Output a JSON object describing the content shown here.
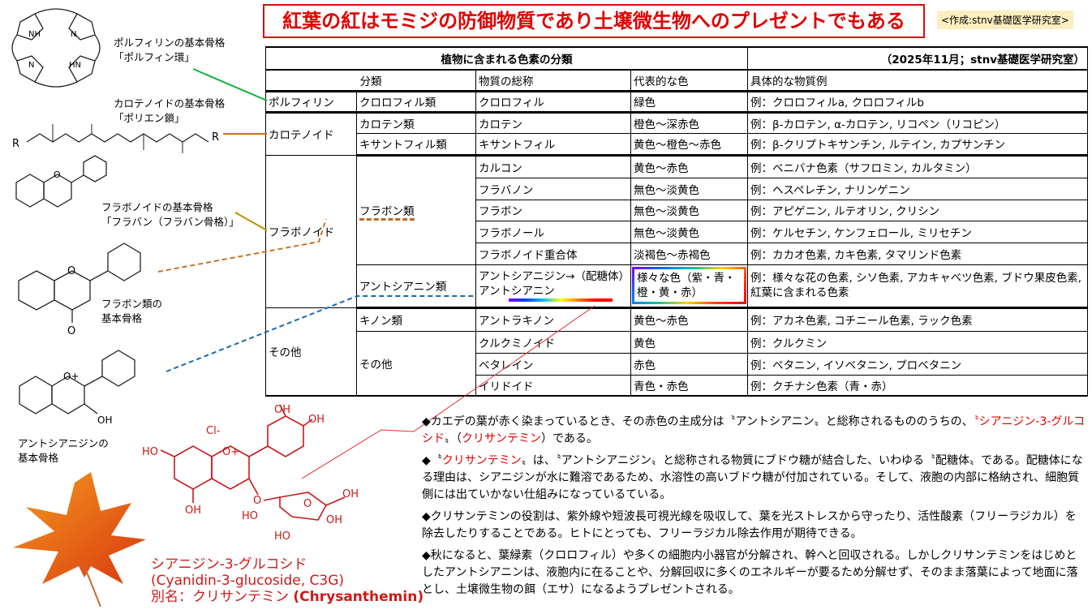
{
  "title": "紅葉の紅はモミジの防御物質であり土壌微生物へのプレゼントでもある",
  "credit": "<作成:stnv基礎医学研究室>",
  "table": {
    "title": "植物に含まれる色素の分類",
    "subtitle": "（2025年11月；stnv基礎医学研究室）",
    "headers": [
      "分類",
      "物質の総称",
      "代表的な色",
      "具体的な物質例"
    ],
    "groups": {
      "porphyrin": "ポルフィリン",
      "carotenoid": "カロテノイド",
      "flavonoid": "フラボノイド",
      "other": "その他",
      "flavone_class": "フラボン類",
      "anthocyanin_class": "アントシアニン類",
      "quinone_class": "キノン類",
      "other_class": "その他"
    },
    "rows": [
      {
        "sub": "クロロフィル類",
        "name": "クロロフィル",
        "color": "緑色",
        "example": "例：クロロフィルa, クロロフィルb"
      },
      {
        "sub": "カロテン類",
        "name": "カロテン",
        "color": "橙色～深赤色",
        "example": "例：β-カロテン, α-カロテン, リコペン（リコピン）"
      },
      {
        "sub": "キサントフィル類",
        "name": "キサントフィル",
        "color": "黄色～橙色～赤色",
        "example": "例：β-クリプトキサンチン, ルテイン, カプサンチン"
      },
      {
        "name": "カルコン",
        "color": "黄色～赤色",
        "example": "例：ベニバナ色素（サフロミン, カルタミン）"
      },
      {
        "name": "フラバノン",
        "color": "無色～淡黄色",
        "example": "例：ヘスペレチン, ナリンゲニン"
      },
      {
        "name": "フラボン",
        "color": "無色～淡黄色",
        "example": "例：アピゲニン, ルテオリン, クリシン"
      },
      {
        "name": "フラボノール",
        "color": "無色～淡黄色",
        "example": "例：ケルセチン, ケンフェロール, ミリセチン"
      },
      {
        "name": "フラボノイド重合体",
        "color": "淡褐色～赤褐色",
        "example": "例：カカオ色素, カキ色素, タマリンド色素"
      },
      {
        "name": "アントシアニジン→（配糖体）アントシアニン",
        "color": "様々な色（紫・青・橙・黄・赤）",
        "example": "例：様々な花の色素, シソ色素, アカキャベツ色素, ブドウ果皮色素, 紅葉に含まれる色素"
      },
      {
        "name": "アントラキノン",
        "color": "黄色～赤色",
        "example": "例：アカネ色素, コチニール色素, ラック色素"
      },
      {
        "name": "クルクミノイド",
        "color": "黄色",
        "example": "例：クルクミン"
      },
      {
        "name": "ベタレイン",
        "color": "赤色",
        "example": "例：ベタニン, イソベタニン, プロベタニン"
      },
      {
        "name": "イリドイド",
        "color": "青色・赤色",
        "example": "例：クチナシ色素（青・赤）"
      }
    ]
  },
  "structures": {
    "porphyrin": [
      "ポルフィリンの基本骨格",
      "「ポルフィン環」"
    ],
    "carotenoid": [
      "カロテノイドの基本骨格",
      "「ポリエン鎖」"
    ],
    "flavonoid": [
      "フラボノイドの基本骨格",
      "「フラバン（フラバン骨格）」"
    ],
    "flavone": [
      "フラボン類の",
      "基本骨格"
    ],
    "anthocyanidin": [
      "アントシアニジンの",
      "基本骨格"
    ],
    "atoms": {
      "nh": "NH",
      "hn": "HN",
      "n": "N",
      "r": "R",
      "o": "O",
      "o_plus": "O+",
      "oh": "OH",
      "ho": "HO",
      "cl": "Cl-"
    }
  },
  "compound": {
    "name": "シアニジン-3-グルコシド",
    "english": "(Cyanidin-3-glucoside, C3G)",
    "alias_label": "別名：クリサンテミン",
    "alias_english": "(Chrysanthemin)"
  },
  "notes": [
    [
      {
        "t": "◆カエデの葉が赤く染まっているとき、その赤色の主成分は〝アントシアニン〟と総称されるもののうちの、",
        "red": false
      },
      {
        "t": "〝シアニジン-3-グルコシド",
        "red": true
      },
      {
        "t": "〟（",
        "red": false
      },
      {
        "t": "クリサンテミン",
        "red": true
      },
      {
        "t": "）である。",
        "red": false
      }
    ],
    [
      {
        "t": "◆〝",
        "red": false
      },
      {
        "t": "クリサンテミン",
        "red": true
      },
      {
        "t": "〟は、〝アントシアニジン〟と総称される物質にブドウ糖が結合した、いわゆる〝配糖体〟である。配糖体になる理由は、シアニジンが水に難溶であるため、水溶性の高いブドウ糖が付加されている。そして、液胞の内部に格納され、細胞質側には出ていかない仕組みになっているている。",
        "red": false
      }
    ],
    [
      {
        "t": "◆クリサンテミンの役割は、紫外線や短波長可視光線を吸収して、葉を光ストレスから守ったり、活性酸素（フリーラジカル）を除去したりすることである。ヒトにとっても、フリーラジカル除去作用が期待できる。",
        "red": false
      }
    ],
    [
      {
        "t": "◆秋になると、葉緑素（クロロフィル）や多くの細胞内小器官が分解され、幹へと回収される。しかしクリサンテミンをはじめとしたアントシアニンは、液胞内に在ることや、分解回収に多くのエネルギーが要るため分解せず、そのまま落葉によって地面に落とし、土壌微生物の餌（エサ）になるようプレゼントされる。",
        "red": false
      }
    ]
  ],
  "colors": {
    "title_red": "#e00000",
    "credit_bg": "#fdeec0",
    "porphyrin_line": "#10b040",
    "carotenoid_line": "#d07010",
    "flavonoid_line": "#c09000",
    "flavone_line": "#d07020",
    "anthocyanidin_line": "#1a6ab0",
    "compound_red": "#c81818",
    "leaf": "#e8501a"
  }
}
